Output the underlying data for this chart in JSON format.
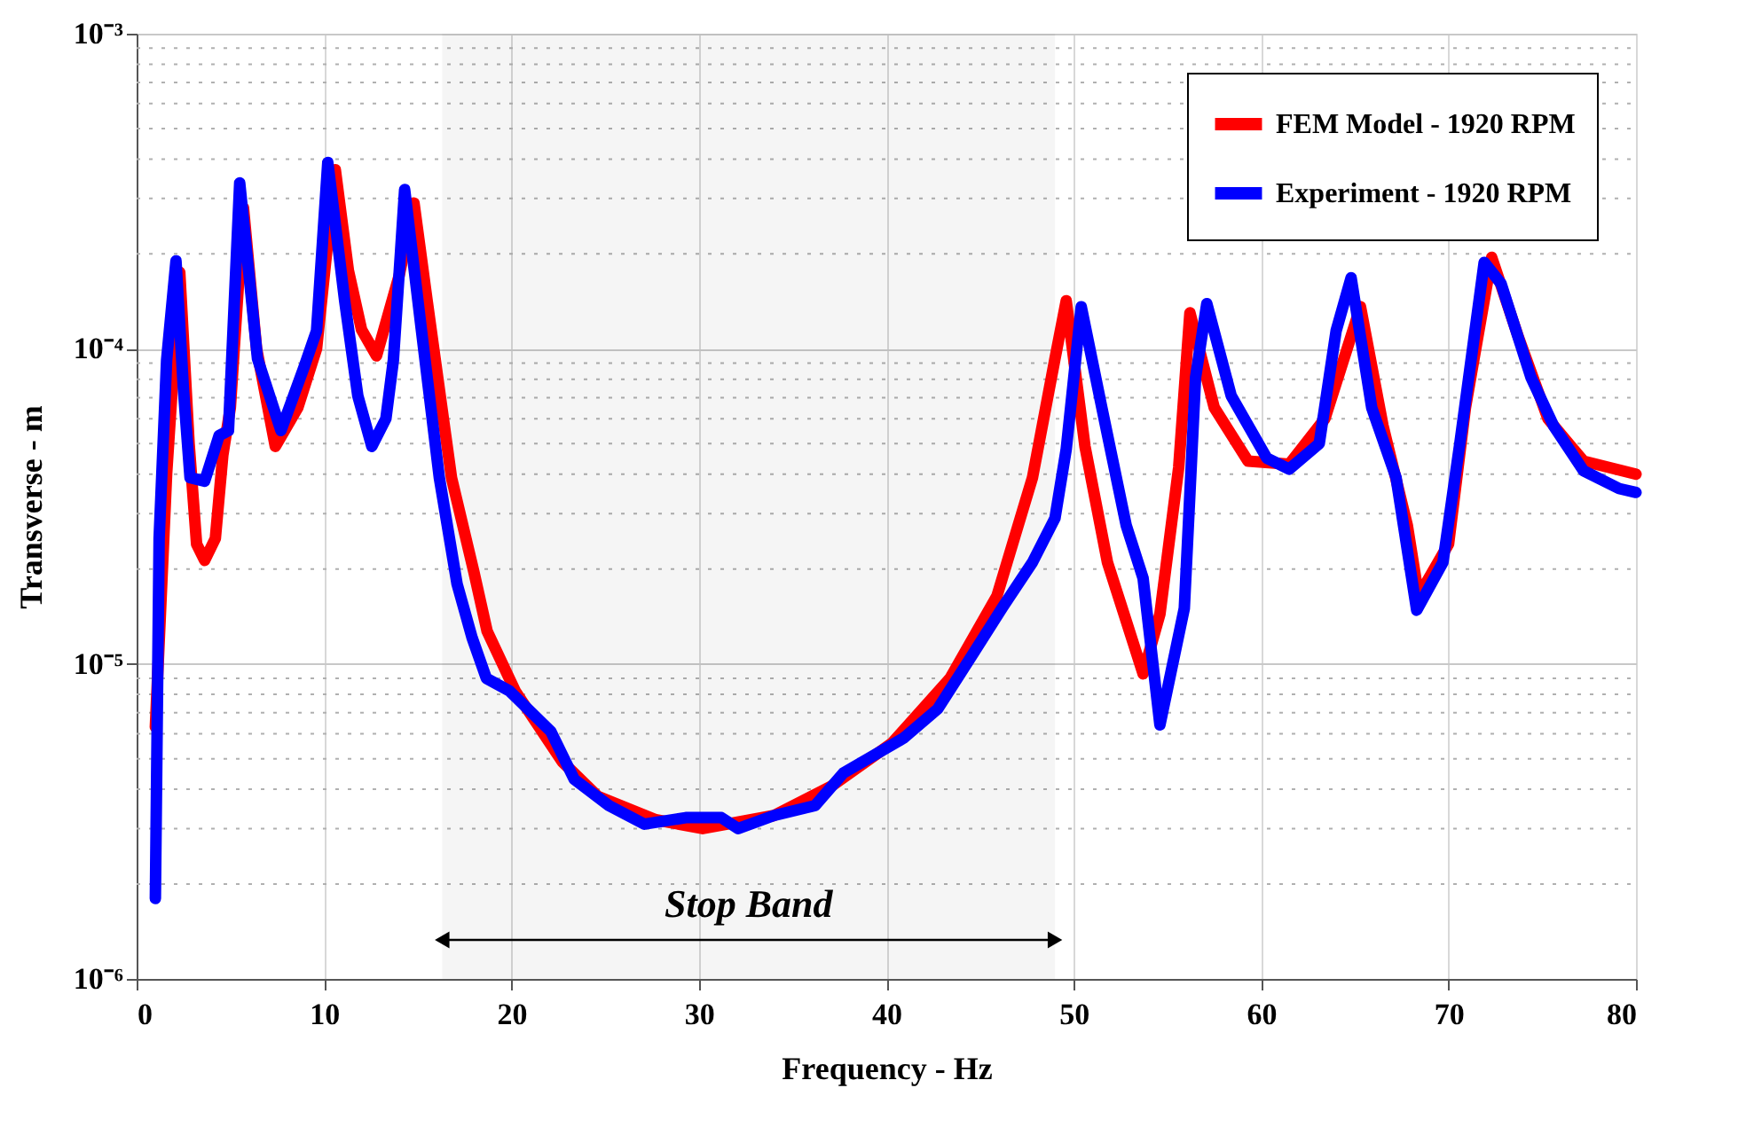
{
  "chart_data": {
    "type": "line",
    "xlabel": "Frequency - Hz",
    "ylabel": "Transverse - m",
    "log": "y",
    "grid": true,
    "legend": "top right",
    "line_style": "solid",
    "marker": "none",
    "xlim": [
      0,
      80
    ],
    "xticks": [
      0,
      10,
      20,
      30,
      40,
      50,
      60,
      70,
      80
    ],
    "ylim": [
      1e-06,
      0.001
    ],
    "yticks": [
      {
        "value": 1e-06,
        "label": "10⁻⁶"
      },
      {
        "value": 1e-05,
        "label": "10⁻⁵"
      },
      {
        "value": 0.0001,
        "label": "10⁻⁴"
      },
      {
        "value": 0.001,
        "label": "10⁻³"
      }
    ],
    "bands": [
      {
        "axis": "x",
        "from": 16.3,
        "to": 49.0,
        "label": "Stop Band",
        "color": "#000000"
      }
    ],
    "series": [
      {
        "name": "FEM Model - 1920 RPM",
        "color": "#ff0000",
        "x": [
          1.0,
          1.6,
          2.3,
          2.8,
          3.2,
          3.63,
          4.2,
          4.6,
          5.0,
          5.7,
          6.4,
          7.4,
          8.6,
          9.6,
          10.6,
          11.3,
          12.0,
          12.8,
          14.0,
          14.8,
          15.5,
          16.8,
          18.0,
          18.7,
          20.2,
          22.7,
          24.6,
          27.7,
          30.2,
          34.0,
          37.1,
          40.3,
          43.4,
          45.9,
          47.8,
          49.0,
          49.6,
          50.6,
          51.8,
          53.7,
          54.6,
          55.6,
          56.2,
          57.5,
          59.3,
          61.5,
          63.4,
          65.3,
          66.5,
          67.8,
          68.4,
          70.0,
          70.9,
          72.3,
          73.7,
          75.3,
          77.2,
          80.0
        ],
        "values": [
          6.3e-06,
          4e-05,
          0.000175,
          5e-05,
          2.4e-05,
          2.13e-05,
          2.5e-05,
          4.6e-05,
          6.5e-05,
          0.00028,
          0.0001,
          4.9e-05,
          6.5e-05,
          0.0001,
          0.00037,
          0.000177,
          0.000115,
          9.5e-05,
          0.00017,
          0.00029,
          0.000142,
          3.9e-05,
          1.95e-05,
          1.27e-05,
          8.2e-06,
          4.9e-06,
          3.8e-06,
          3.2e-06,
          3e-06,
          3.3e-06,
          4.1e-06,
          5.6e-06,
          9e-06,
          1.64e-05,
          3.9e-05,
          9.3e-05,
          0.000142,
          4.9e-05,
          2.1e-05,
          9.3e-06,
          1.44e-05,
          4.2e-05,
          0.00013,
          6.5e-05,
          4.4e-05,
          4.3e-05,
          6e-05,
          0.000136,
          5.7e-05,
          2.75e-05,
          1.64e-05,
          2.4e-05,
          6.5e-05,
          0.000195,
          0.00011,
          6e-05,
          4.4e-05,
          4e-05
        ]
      },
      {
        "name": "Experiment - 1920 RPM",
        "color": "#0000ff",
        "x": [
          1.0,
          1.2,
          1.6,
          2.1,
          2.5,
          2.85,
          3.63,
          4.4,
          4.9,
          5.5,
          6.45,
          7.7,
          8.95,
          9.6,
          10.2,
          11.1,
          11.8,
          12.55,
          13.3,
          13.7,
          14.3,
          15.2,
          16.15,
          17.1,
          17.9,
          18.66,
          19.9,
          22.1,
          23.35,
          25.2,
          27.1,
          29.3,
          31.2,
          32.1,
          34.0,
          36.2,
          37.7,
          40.9,
          42.75,
          44.6,
          46.2,
          47.8,
          49.0,
          49.6,
          50.4,
          51.5,
          52.8,
          53.7,
          54.6,
          55.9,
          56.5,
          57.1,
          58.4,
          60.3,
          61.5,
          63.1,
          64.0,
          64.8,
          65.9,
          67.2,
          68.3,
          69.7,
          70.6,
          71.9,
          72.8,
          74.4,
          75.6,
          77.2,
          79.1,
          80.0
        ],
        "values": [
          1.8e-06,
          2.5e-05,
          9.2e-05,
          0.00019,
          7.4e-05,
          3.9e-05,
          3.8e-05,
          5.3e-05,
          5.5e-05,
          0.000336,
          9.3e-05,
          5.5e-05,
          8.8e-05,
          0.000114,
          0.00039,
          0.000142,
          7.1e-05,
          4.9e-05,
          6e-05,
          9.2e-05,
          0.00032,
          0.000114,
          3.9e-05,
          1.79e-05,
          1.21e-05,
          9e-06,
          8.2e-06,
          6.1e-06,
          4.3e-06,
          3.55e-06,
          3.1e-06,
          3.25e-06,
          3.25e-06,
          3e-06,
          3.3e-06,
          3.55e-06,
          4.5e-06,
          5.8e-06,
          7.2e-06,
          1.07e-05,
          1.51e-05,
          2.1e-05,
          2.9e-05,
          4.8e-05,
          0.000136,
          6.5e-05,
          2.75e-05,
          1.87e-05,
          6.4e-06,
          1.5e-05,
          8.1e-05,
          0.000139,
          7.1e-05,
          4.5e-05,
          4.15e-05,
          5e-05,
          0.000114,
          0.000168,
          6.5e-05,
          3.9e-05,
          1.48e-05,
          2.1e-05,
          5e-05,
          0.000188,
          0.000161,
          8.1e-05,
          5.7e-05,
          4.1e-05,
          3.6e-05,
          3.5e-05
        ]
      }
    ]
  }
}
